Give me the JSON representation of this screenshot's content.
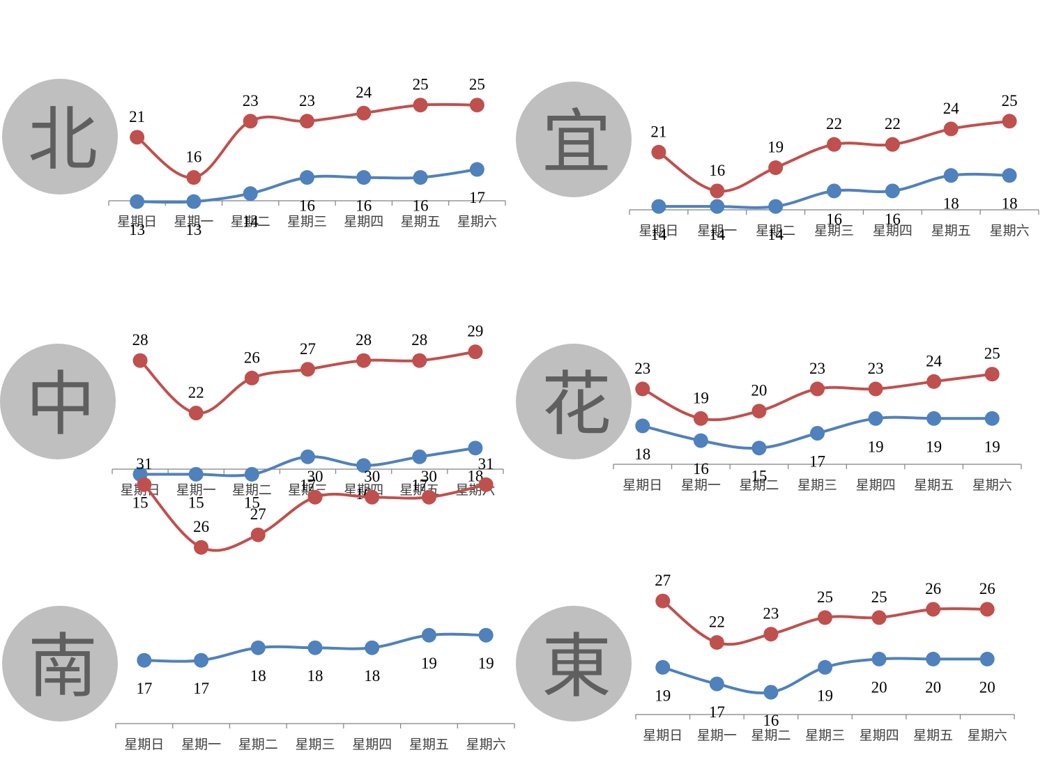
{
  "palette": {
    "high": "#c0504d",
    "low": "#4f81bd"
  },
  "chart_data": [
    {
      "type": "line",
      "region": "北",
      "categories": [
        "星期日",
        "星期一",
        "星期二",
        "星期三",
        "星期四",
        "星期五",
        "星期六"
      ],
      "series": [
        {
          "values": [
            21,
            16,
            23,
            23,
            24,
            25,
            25
          ],
          "color": "#c0504d"
        },
        {
          "values": [
            13,
            13,
            14,
            16,
            16,
            16,
            17
          ],
          "color": "#4f81bd"
        }
      ],
      "data_labels": true,
      "grid": false,
      "legend": "none"
    },
    {
      "type": "line",
      "region": "宜",
      "categories": [
        "星期日",
        "星期一",
        "星期二",
        "星期三",
        "星期四",
        "星期五",
        "星期六"
      ],
      "series": [
        {
          "values": [
            21,
            16,
            19,
            22,
            22,
            24,
            25
          ],
          "color": "#c0504d"
        },
        {
          "values": [
            14,
            14,
            14,
            16,
            16,
            18,
            18
          ],
          "color": "#4f81bd"
        }
      ],
      "data_labels": true,
      "grid": false,
      "legend": "none"
    },
    {
      "type": "line",
      "region": "中",
      "categories": [
        "星期日",
        "星期一",
        "星期二",
        "星期三",
        "星期四",
        "星期五",
        "星期六"
      ],
      "series": [
        {
          "values": [
            28,
            22,
            26,
            27,
            28,
            28,
            29
          ],
          "color": "#c0504d"
        },
        {
          "values": [
            15,
            15,
            15,
            17,
            16,
            17,
            18
          ],
          "color": "#4f81bd"
        }
      ],
      "data_labels": true,
      "grid": false,
      "legend": "none"
    },
    {
      "type": "line",
      "region": "花",
      "categories": [
        "星期日",
        "星期一",
        "星期二",
        "星期三",
        "星期四",
        "星期五",
        "星期六"
      ],
      "series": [
        {
          "values": [
            23,
            19,
            20,
            23,
            23,
            24,
            25
          ],
          "color": "#c0504d"
        },
        {
          "values": [
            18,
            16,
            15,
            17,
            19,
            19,
            19
          ],
          "color": "#4f81bd"
        }
      ],
      "data_labels": true,
      "grid": false,
      "legend": "none"
    },
    {
      "type": "line",
      "region": "南",
      "categories": [
        "星期日",
        "星期一",
        "星期二",
        "星期三",
        "星期四",
        "星期五",
        "星期六"
      ],
      "series": [
        {
          "values": [
            31,
            26,
            27,
            30,
            30,
            30,
            31
          ],
          "color": "#c0504d"
        },
        {
          "values": [
            17,
            17,
            18,
            18,
            18,
            19,
            19
          ],
          "color": "#4f81bd"
        }
      ],
      "data_labels": true,
      "grid": false,
      "legend": "none"
    },
    {
      "type": "line",
      "region": "東",
      "categories": [
        "星期日",
        "星期一",
        "星期二",
        "星期三",
        "星期四",
        "星期五",
        "星期六"
      ],
      "series": [
        {
          "values": [
            27,
            22,
            23,
            25,
            25,
            26,
            26
          ],
          "color": "#c0504d"
        },
        {
          "values": [
            19,
            17,
            16,
            19,
            20,
            20,
            20
          ],
          "color": "#4f81bd"
        }
      ],
      "data_labels": true,
      "grid": false,
      "legend": "none"
    }
  ]
}
